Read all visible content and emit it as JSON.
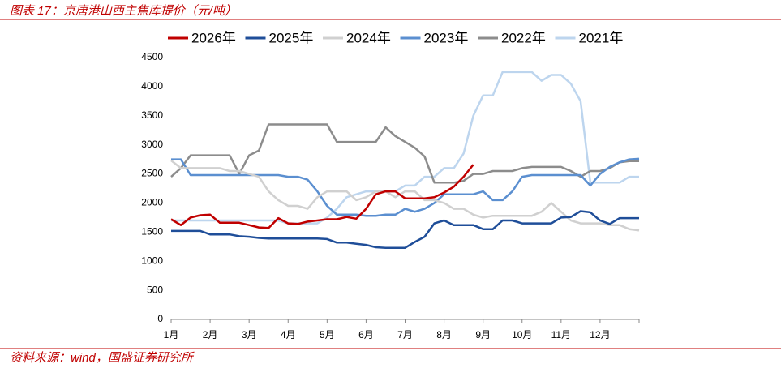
{
  "chart_data": {
    "type": "line",
    "title": "图表 17：京唐港山西主焦库提价（元/吨）",
    "source": "资料来源：wind，国盛证券研究所",
    "x": [
      0,
      0.25,
      0.5,
      0.75,
      1,
      1.25,
      1.5,
      1.75,
      2,
      2.25,
      2.5,
      2.75,
      3,
      3.25,
      3.5,
      3.75,
      4,
      4.25,
      4.5,
      4.75,
      5,
      5.25,
      5.5,
      5.75,
      6,
      6.25,
      6.5,
      6.75,
      7,
      7.25,
      7.5,
      7.75,
      8,
      8.25,
      8.5,
      8.75,
      9,
      9.25,
      9.5,
      9.75,
      10,
      10.25,
      10.5,
      10.75,
      11,
      11.25,
      11.5,
      11.75,
      12
    ],
    "xlim": [
      0,
      12
    ],
    "xticks": [
      {
        "value": 0,
        "label": "1月"
      },
      {
        "value": 1,
        "label": "2月"
      },
      {
        "value": 2,
        "label": "3月"
      },
      {
        "value": 3,
        "label": "4月"
      },
      {
        "value": 4,
        "label": "5月"
      },
      {
        "value": 5,
        "label": "6月"
      },
      {
        "value": 6,
        "label": "7月"
      },
      {
        "value": 7,
        "label": "8月"
      },
      {
        "value": 8,
        "label": "9月"
      },
      {
        "value": 9,
        "label": "10月"
      },
      {
        "value": 10,
        "label": "11月"
      },
      {
        "value": 11,
        "label": "12月"
      }
    ],
    "ylim": [
      0,
      4500
    ],
    "yticks": [
      0,
      500,
      1000,
      1500,
      2000,
      2500,
      3000,
      3500,
      4000,
      4500
    ],
    "series": [
      {
        "name": "2026年",
        "color": "#c00000",
        "values": [
          1720,
          1620,
          1750,
          1790,
          1800,
          1660,
          1660,
          1660,
          1620,
          1580,
          1570,
          1740,
          1650,
          1640,
          1680,
          1700,
          1720,
          1720,
          1760,
          1730,
          1900,
          2150,
          2200,
          2200,
          2080,
          2080,
          2080,
          2100,
          2180,
          2280,
          2450,
          2660,
          null,
          null,
          null,
          null,
          null,
          null,
          null,
          null,
          null,
          null,
          null,
          null,
          null,
          null,
          null,
          null,
          null
        ]
      },
      {
        "name": "2025年",
        "color": "#1f4e99",
        "values": [
          1520,
          1520,
          1520,
          1520,
          1460,
          1460,
          1460,
          1430,
          1420,
          1400,
          1390,
          1390,
          1390,
          1390,
          1390,
          1390,
          1380,
          1320,
          1320,
          1300,
          1280,
          1240,
          1230,
          1230,
          1230,
          1330,
          1420,
          1650,
          1700,
          1620,
          1620,
          1620,
          1550,
          1550,
          1700,
          1700,
          1650,
          1650,
          1650,
          1650,
          1750,
          1760,
          1860,
          1840,
          1700,
          1640,
          1740,
          1740,
          1740
        ]
      },
      {
        "name": "2024年",
        "color": "#d0d0d0",
        "values": [
          2730,
          2600,
          2600,
          2600,
          2600,
          2600,
          2550,
          2550,
          2500,
          2450,
          2200,
          2050,
          1950,
          1950,
          1900,
          2100,
          2200,
          2200,
          2200,
          2050,
          2100,
          2200,
          2200,
          2100,
          2200,
          2200,
          2050,
          2050,
          2000,
          1900,
          1900,
          1800,
          1750,
          1780,
          1780,
          1780,
          1780,
          1780,
          1850,
          2000,
          1850,
          1700,
          1650,
          1650,
          1650,
          1620,
          1620,
          1550,
          1530
        ]
      },
      {
        "name": "2023年",
        "color": "#5b8fd0",
        "values": [
          2750,
          2750,
          2480,
          2480,
          2480,
          2480,
          2480,
          2480,
          2480,
          2480,
          2480,
          2480,
          2450,
          2450,
          2400,
          2200,
          1950,
          1800,
          1800,
          1800,
          1780,
          1780,
          1800,
          1800,
          1900,
          1850,
          1900,
          2000,
          2150,
          2150,
          2150,
          2150,
          2200,
          2050,
          2050,
          2200,
          2450,
          2480,
          2480,
          2480,
          2480,
          2480,
          2480,
          2300,
          2500,
          2620,
          2700,
          2750,
          2760
        ]
      },
      {
        "name": "2022年",
        "color": "#8c8c8c",
        "values": [
          2450,
          2600,
          2820,
          2820,
          2820,
          2820,
          2820,
          2500,
          2820,
          2900,
          3350,
          3350,
          3350,
          3350,
          3350,
          3350,
          3350,
          3050,
          3050,
          3050,
          3050,
          3050,
          3300,
          3150,
          3050,
          2950,
          2800,
          2350,
          2350,
          2350,
          2380,
          2500,
          2500,
          2550,
          2550,
          2550,
          2600,
          2620,
          2620,
          2620,
          2620,
          2550,
          2450,
          2550,
          2550,
          2600,
          2700,
          2720,
          2720
        ]
      },
      {
        "name": "2021年",
        "color": "#bdd5ee",
        "values": [
          1700,
          1700,
          1700,
          1700,
          1700,
          1700,
          1700,
          1700,
          1700,
          1700,
          1700,
          1700,
          1650,
          1650,
          1650,
          1650,
          1750,
          1900,
          2100,
          2150,
          2200,
          2200,
          2200,
          2200,
          2300,
          2300,
          2450,
          2450,
          2600,
          2600,
          2850,
          3500,
          3850,
          3850,
          4250,
          4250,
          4250,
          4250,
          4100,
          4200,
          4200,
          4050,
          3750,
          2350,
          2350,
          2350,
          2350,
          2450,
          2450
        ]
      }
    ]
  }
}
